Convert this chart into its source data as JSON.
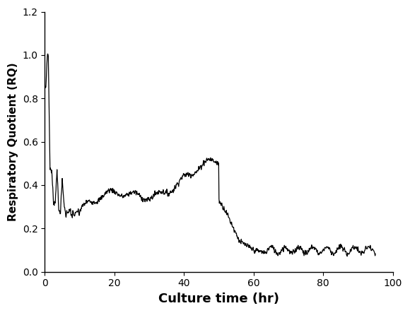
{
  "title": "",
  "xlabel": "Culture time (hr)",
  "ylabel": "Respiratory Quotient (RQ)",
  "xlim": [
    0,
    100
  ],
  "ylim": [
    0.0,
    1.2
  ],
  "xticks": [
    0,
    20,
    40,
    60,
    80,
    100
  ],
  "yticks": [
    0.0,
    0.2,
    0.4,
    0.6,
    0.8,
    1.0,
    1.2
  ],
  "line_color": "#000000",
  "line_width": 0.9,
  "background_color": "#ffffff",
  "xlabel_fontsize": 13,
  "ylabel_fontsize": 11,
  "tick_fontsize": 10
}
